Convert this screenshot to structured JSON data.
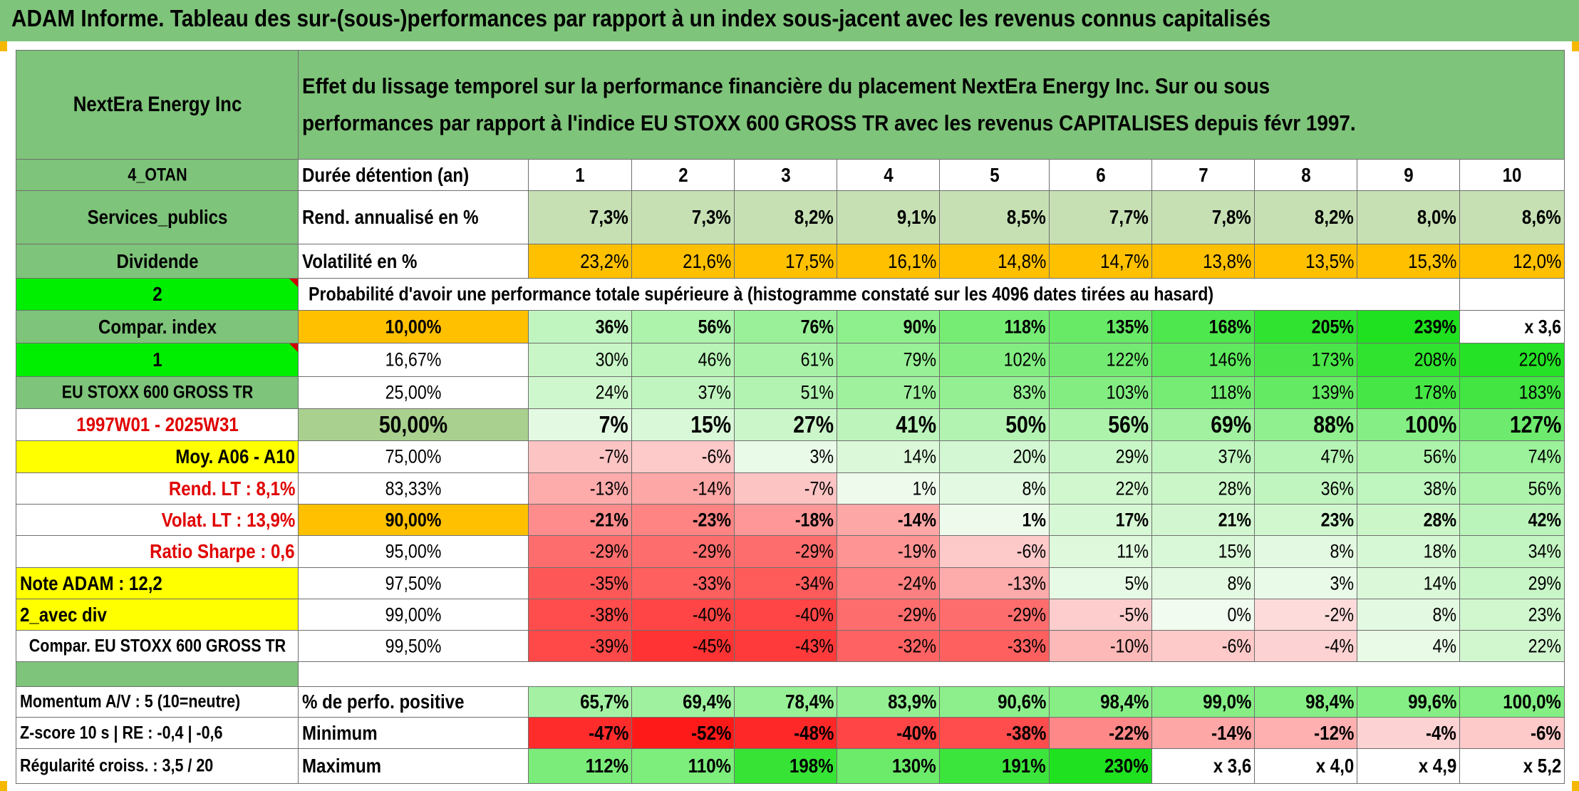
{
  "page_title": "ADAM Informe. Tableau des sur-(sous-)performances par rapport à un index sous-jacent avec les revenus connus capitalisés",
  "header": {
    "company": "NextEra Energy Inc",
    "description": "Effet du lissage temporel sur la performance financière du placement NextEra Energy Inc. Sur ou sous performances par rapport à l'indice EU STOXX 600 GROSS TR avec les revenus CAPITALISES depuis févr 1997."
  },
  "sidebar": {
    "otan": "4_OTAN",
    "sector": "Services_publics",
    "dividend": "Dividende",
    "code2": "2",
    "compar_index": "Compar. index",
    "code1": "1",
    "index_name": "EU STOXX 600 GROSS TR",
    "period": "1997W01 - 2025W31",
    "moy": "Moy. A06 - A10",
    "rend_lt": "Rend. LT :   8,1%",
    "volat_lt": "Volat. LT :   13,9%",
    "sharpe": "Ratio Sharpe :   0,6",
    "note_adam": "Note ADAM : 12,2",
    "avec_div": "2_avec div",
    "compar_full": "Compar. EU STOXX 600 GROSS TR",
    "momentum": "Momentum A/V : 5 (10=neutre)",
    "zscore": "Z-score 10 s | RE : -0,4 | -0,6",
    "regularite": "Régularité croiss. : 3,5 / 20"
  },
  "summary": {
    "duration_label": "Durée détention (an)",
    "durations": [
      "1",
      "2",
      "3",
      "4",
      "5",
      "6",
      "7",
      "8",
      "9",
      "10"
    ],
    "rend_label": "Rend. annualisé en %",
    "rend": [
      "7,3%",
      "7,3%",
      "8,2%",
      "9,1%",
      "8,5%",
      "7,7%",
      "7,8%",
      "8,2%",
      "8,0%",
      "8,6%"
    ],
    "vol_label": "Volatilité en %",
    "vol": [
      "23,2%",
      "21,6%",
      "17,5%",
      "16,1%",
      "14,8%",
      "14,7%",
      "13,8%",
      "13,5%",
      "15,3%",
      "12,0%"
    ]
  },
  "probability": {
    "caption": "Probabilité d'avoir une performance totale supérieure à (histogramme constaté sur les 4096 dates tirées au hasard)",
    "rows": [
      {
        "p": "10,00%",
        "v": [
          "36%",
          "56%",
          "76%",
          "90%",
          "118%",
          "135%",
          "168%",
          "205%",
          "239%",
          "x 3,6"
        ]
      },
      {
        "p": "16,67%",
        "v": [
          "30%",
          "46%",
          "61%",
          "79%",
          "102%",
          "122%",
          "146%",
          "173%",
          "208%",
          "220%"
        ]
      },
      {
        "p": "25,00%",
        "v": [
          "24%",
          "37%",
          "51%",
          "71%",
          "83%",
          "103%",
          "118%",
          "139%",
          "178%",
          "183%"
        ]
      },
      {
        "p": "50,00%",
        "v": [
          "7%",
          "15%",
          "27%",
          "41%",
          "50%",
          "56%",
          "69%",
          "88%",
          "100%",
          "127%"
        ]
      },
      {
        "p": "75,00%",
        "v": [
          "-7%",
          "-6%",
          "3%",
          "14%",
          "20%",
          "29%",
          "37%",
          "47%",
          "56%",
          "74%"
        ]
      },
      {
        "p": "83,33%",
        "v": [
          "-13%",
          "-14%",
          "-7%",
          "1%",
          "8%",
          "22%",
          "28%",
          "36%",
          "38%",
          "56%"
        ]
      },
      {
        "p": "90,00%",
        "v": [
          "-21%",
          "-23%",
          "-18%",
          "-14%",
          "1%",
          "17%",
          "21%",
          "23%",
          "28%",
          "42%"
        ]
      },
      {
        "p": "95,00%",
        "v": [
          "-29%",
          "-29%",
          "-29%",
          "-19%",
          "-6%",
          "11%",
          "15%",
          "8%",
          "18%",
          "34%"
        ]
      },
      {
        "p": "97,50%",
        "v": [
          "-35%",
          "-33%",
          "-34%",
          "-24%",
          "-13%",
          "5%",
          "8%",
          "3%",
          "14%",
          "29%"
        ]
      },
      {
        "p": "99,00%",
        "v": [
          "-38%",
          "-40%",
          "-40%",
          "-29%",
          "-29%",
          "-5%",
          "0%",
          "-2%",
          "8%",
          "23%"
        ]
      },
      {
        "p": "99,50%",
        "v": [
          "-39%",
          "-45%",
          "-43%",
          "-32%",
          "-33%",
          "-10%",
          "-6%",
          "-4%",
          "4%",
          "22%"
        ]
      }
    ]
  },
  "stats": {
    "pos_label": "% de perfo. positive",
    "pos": [
      "65,7%",
      "69,4%",
      "78,4%",
      "83,9%",
      "90,6%",
      "98,4%",
      "99,0%",
      "98,4%",
      "99,6%",
      "100,0%"
    ],
    "min_label": "Minimum",
    "min": [
      "-47%",
      "-52%",
      "-48%",
      "-40%",
      "-38%",
      "-22%",
      "-14%",
      "-12%",
      "-4%",
      "-6%"
    ],
    "max_label": "Maximum",
    "max": [
      "112%",
      "110%",
      "198%",
      "130%",
      "191%",
      "230%",
      "x 3,6",
      "x 4,0",
      "x 4,9",
      "x 5,2"
    ]
  },
  "colors": {
    "header_green": "#7ec47a",
    "bright_green": "#00ee00",
    "orange": "#ffc000",
    "yellow": "#ffff00",
    "label_red": "#e00000"
  }
}
